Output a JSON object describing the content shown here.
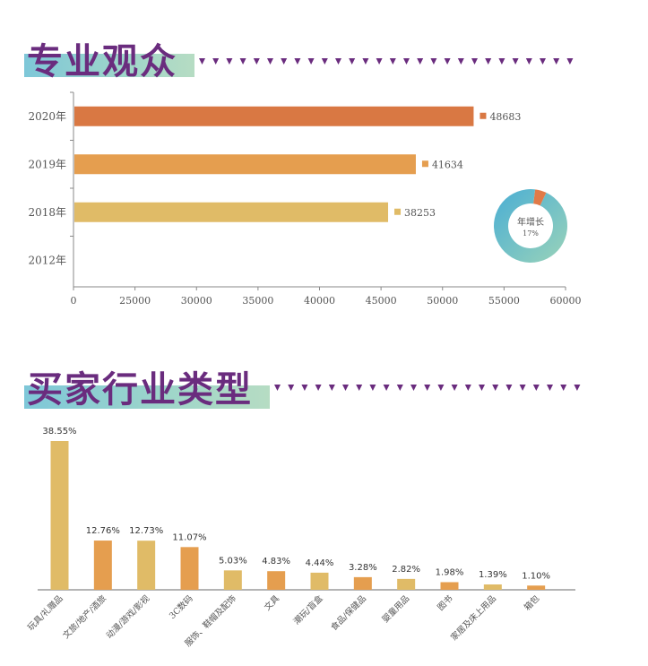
{
  "sections": [
    {
      "title": "专业观众"
    },
    {
      "title": "买家行业类型"
    }
  ],
  "chart_data": [
    {
      "type": "bar",
      "orientation": "horizontal",
      "categories": [
        "2020年",
        "2019年",
        "2018年",
        "2012年"
      ],
      "values": [
        48683,
        41634,
        38253,
        null
      ],
      "value_labels": [
        "48683",
        "41634",
        "38253",
        ""
      ],
      "colors": [
        "#d97843",
        "#e59e4f",
        "#e0bb67",
        "#000000"
      ],
      "xlim": [
        0,
        60000
      ],
      "xticks": [
        "0",
        "25000",
        "30000",
        "35000",
        "40000",
        "45000",
        "50000",
        "55000",
        "60000"
      ],
      "grid": false,
      "legend": "none",
      "inset": {
        "type": "pie",
        "center_label": "年增长",
        "value_label": "17%",
        "value": 17
      }
    },
    {
      "type": "bar",
      "categories": [
        "玩具/礼赠品",
        "文旅/地产/酒旅",
        "动漫/游戏/影视",
        "3C数码",
        "服饰、鞋帽及配饰",
        "文具",
        "潮玩/盲盒",
        "食品/保健品",
        "婴童用品",
        "图书",
        "家居及床上用品",
        "箱包"
      ],
      "values": [
        38.55,
        12.76,
        12.73,
        11.07,
        5.03,
        4.83,
        4.44,
        3.28,
        2.82,
        1.98,
        1.39,
        1.1
      ],
      "value_labels": [
        "38.55%",
        "12.76%",
        "12.73%",
        "11.07%",
        "5.03%",
        "4.83%",
        "4.44%",
        "3.28%",
        "2.82%",
        "1.98%",
        "1.39%",
        "1.10%"
      ],
      "colors": [
        "#e0bb67",
        "#e59e4f",
        "#e0bb67",
        "#e59e4f",
        "#e0bb67",
        "#e59e4f",
        "#e0bb67",
        "#e59e4f",
        "#e0bb67",
        "#e59e4f",
        "#e0bb67",
        "#e59e4f"
      ],
      "ylim": [
        0,
        40
      ],
      "grid": false,
      "legend": "none"
    }
  ],
  "colors": {
    "title": "#6a2c7e",
    "band_start": "#7ec7d8",
    "band_end": "#b6dcc3",
    "axis": "#888888",
    "donut_big": "#5ab6cf",
    "donut_small": "#e07a48"
  }
}
